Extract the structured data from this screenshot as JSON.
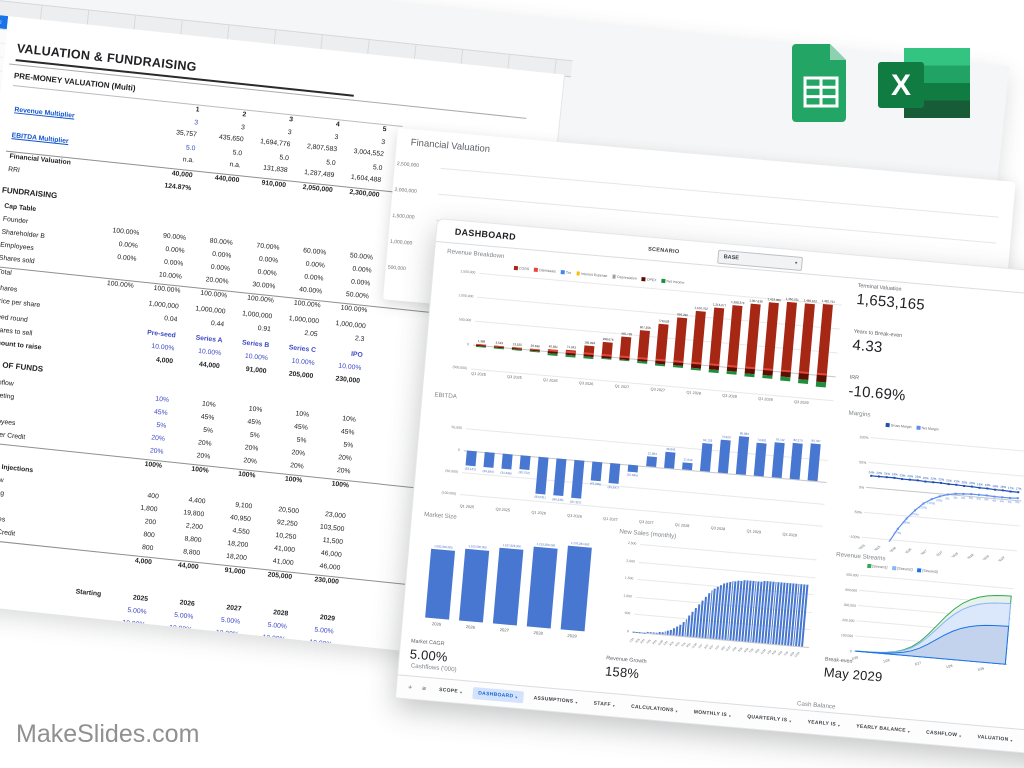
{
  "branding": {
    "watermark": "MakeSlides.com"
  },
  "icons": [
    {
      "name": "google-sheets-icon"
    },
    {
      "name": "excel-icon"
    }
  ],
  "back_sheet": {
    "selected_row": "2",
    "lines": [
      {
        "t": "title",
        "label": "VALUATION & FUNDRAISING"
      },
      {
        "t": "gap",
        "h": 6
      },
      {
        "t": "sec",
        "label": "PRE-MONEY VALUATION (Multi)",
        "rule": true
      },
      {
        "t": "heads",
        "cells": [
          "",
          "1",
          "2",
          "3",
          "4",
          "5"
        ]
      },
      {
        "t": "mrow",
        "label": "Revenue Multiplier",
        "link": true,
        "m": [
          "",
          "3",
          "3",
          "3",
          "3",
          "3"
        ],
        "v": [
          "",
          "35,757",
          "435,650",
          "1,694,776",
          "2,807,583",
          "3,004,552"
        ]
      },
      {
        "t": "mrow",
        "label": "EBITDA Multiplier",
        "link": true,
        "m": [
          "",
          "5.0",
          "5.0",
          "5.0",
          "5.0",
          "5.0"
        ],
        "v": [
          "",
          "n.a.",
          "n.a.",
          "131,838",
          "1,287,489",
          "1,604,488"
        ]
      },
      {
        "t": "row",
        "label": "Financial Valuation",
        "lb": 1,
        "tb": 1,
        "cb": 1,
        "cells": [
          "",
          "40,000",
          "440,000",
          "910,000",
          "2,050,000",
          "2,300,000"
        ]
      },
      {
        "t": "row",
        "label": "RRI",
        "cb": 1,
        "cells": [
          "",
          "124.87%",
          "",
          "",
          "",
          ""
        ]
      },
      {
        "t": "gap",
        "h": 8
      },
      {
        "t": "sec",
        "label": "FUNDRAISING"
      },
      {
        "t": "gap",
        "h": 2
      },
      {
        "t": "row",
        "label": "Cap Table",
        "lb": 1,
        "cells": [
          "",
          "",
          "",
          "",
          "",
          ""
        ]
      },
      {
        "t": "row",
        "label": "Founder",
        "cells": [
          "100.00%",
          "90.00%",
          "80.00%",
          "70.00%",
          "60.00%",
          "50.00%"
        ]
      },
      {
        "t": "row",
        "label": "Shareholder B",
        "cells": [
          "0.00%",
          "0.00%",
          "0.00%",
          "0.00%",
          "0.00%",
          "0.00%"
        ]
      },
      {
        "t": "row",
        "label": "Employees",
        "cells": [
          "0.00%",
          "0.00%",
          "0.00%",
          "0.00%",
          "0.00%",
          "0.00%"
        ]
      },
      {
        "t": "row",
        "label": "Shares sold",
        "cells": [
          "",
          "10.00%",
          "20.00%",
          "30.00%",
          "40.00%",
          "50.00%"
        ]
      },
      {
        "t": "row",
        "label": "Total",
        "tb": 1,
        "cells": [
          "100.00%",
          "100.00%",
          "100.00%",
          "100.00%",
          "100.00%",
          "100.00%"
        ]
      },
      {
        "t": "gap",
        "h": 3
      },
      {
        "t": "row",
        "label": "Shares",
        "cells": [
          "",
          "1,000,000",
          "1,000,000",
          "1,000,000",
          "1,000,000",
          "1,000,000"
        ]
      },
      {
        "t": "row",
        "label": "Price per share",
        "cells": [
          "",
          "0.04",
          "0.44",
          "0.91",
          "2.05",
          "2.3"
        ]
      },
      {
        "t": "gap",
        "h": 3
      },
      {
        "t": "row",
        "label": "Seed round",
        "cu": 1,
        "cb": 1,
        "cells": [
          "",
          "Pre-seed",
          "Series A",
          "Series B",
          "Series C",
          "IPO"
        ]
      },
      {
        "t": "row",
        "label": "Shares to sell",
        "cu": 1,
        "cells": [
          "",
          "10.00%",
          "10.00%",
          "10.00%",
          "10.00%",
          "10.00%"
        ]
      },
      {
        "t": "row",
        "label": "Amount to raise",
        "lb": 1,
        "cb": 1,
        "cells": [
          "",
          "4,000",
          "44,000",
          "91,000",
          "205,000",
          "230,000"
        ]
      },
      {
        "t": "gap",
        "h": 8
      },
      {
        "t": "sec",
        "label": "USE OF FUNDS"
      },
      {
        "t": "gap",
        "h": 4
      },
      {
        "t": "row",
        "label": "Cashflow",
        "c1u": 1,
        "cells": [
          "",
          "10%",
          "10%",
          "10%",
          "10%",
          "10%"
        ]
      },
      {
        "t": "row",
        "label": "Marketing",
        "c1u": 1,
        "cells": [
          "",
          "45%",
          "45%",
          "45%",
          "45%",
          "45%"
        ]
      },
      {
        "t": "row",
        "label": "Legal",
        "c1u": 1,
        "cells": [
          "",
          "5%",
          "5%",
          "5%",
          "5%",
          "5%"
        ]
      },
      {
        "t": "row",
        "label": "Employees",
        "c1u": 1,
        "cells": [
          "",
          "20%",
          "20%",
          "20%",
          "20%",
          "20%"
        ]
      },
      {
        "t": "row",
        "label": "Supplier Credit",
        "c1u": 1,
        "cells": [
          "",
          "20%",
          "20%",
          "20%",
          "20%",
          "20%"
        ]
      },
      {
        "t": "row",
        "label": "Total",
        "lb": 1,
        "tb": 1,
        "cb": 1,
        "cells": [
          "",
          "100%",
          "100%",
          "100%",
          "100%",
          "100%"
        ]
      },
      {
        "t": "gap",
        "h": 5
      },
      {
        "t": "row",
        "label": "Capital Injections",
        "lb": 1,
        "cells": [
          "",
          "",
          "",
          "",
          "",
          ""
        ]
      },
      {
        "t": "row",
        "label": "Cashflow",
        "cells": [
          "",
          "400",
          "4,400",
          "9,100",
          "20,500",
          "23,000"
        ]
      },
      {
        "t": "row",
        "label": "Marketing",
        "cells": [
          "",
          "1,800",
          "19,800",
          "40,950",
          "92,250",
          "103,500"
        ]
      },
      {
        "t": "row",
        "label": "Legal",
        "cells": [
          "",
          "200",
          "2,200",
          "4,550",
          "10,250",
          "11,500"
        ]
      },
      {
        "t": "row",
        "label": "Employees",
        "cells": [
          "",
          "800",
          "8,800",
          "18,200",
          "41,000",
          "46,000"
        ]
      },
      {
        "t": "row",
        "label": "Supplier Credit",
        "cells": [
          "",
          "800",
          "8,800",
          "18,200",
          "41,000",
          "46,000"
        ]
      },
      {
        "t": "row",
        "label": "Total",
        "tb": 1,
        "cb": 1,
        "cells": [
          "",
          "4,000",
          "44,000",
          "91,000",
          "205,000",
          "230,000"
        ]
      },
      {
        "t": "gap",
        "h": 10
      },
      {
        "t": "sec",
        "label": "C"
      },
      {
        "t": "heads",
        "cells": [
          "Starting",
          "2025",
          "2026",
          "2027",
          "2028",
          "2029"
        ]
      },
      {
        "t": "row",
        "label": "e Rate",
        "cu": 1,
        "cells": [
          "",
          "5.00%",
          "5.00%",
          "5.00%",
          "5.00%",
          "5.00%"
        ]
      },
      {
        "t": "row",
        "label": "",
        "cu": 1,
        "cells": [
          "",
          "10.00%",
          "10.00%",
          "10.00%",
          "10.00%",
          "10.00%"
        ]
      }
    ]
  },
  "middle_sheet": {
    "title": "Financial Valuation"
  },
  "dashboard": {
    "title": "DASHBOARD",
    "scenario_label": "SCENARIO",
    "scenario_value": "BASE",
    "kpis": [
      {
        "label": "Terminal Valuation",
        "value": "1,653,165"
      },
      {
        "label": "Years to Break-even",
        "value": "4.33"
      },
      {
        "label": "IRR",
        "value": "-10.69%"
      },
      {
        "label": "Market CAGR",
        "value": "5.00%"
      },
      {
        "label": "Revenue Growth",
        "value": "158%"
      },
      {
        "label": "Break-even",
        "value": "May 2029"
      }
    ],
    "cashflows_title": "Cashflows ('000)",
    "cash_balance_title": "Cash Balance",
    "tabs": {
      "items": [
        "SCOPE",
        "DASHBOARD",
        "ASSUMPTIONS",
        "STAFF",
        "CALCULATIONS",
        "MONTHLY IS",
        "QUARTERLY IS",
        "YEARLY IS",
        "YEARLY BALANCE",
        "CASHFLOW",
        "VALUATION"
      ],
      "active": "DASHBOARD"
    }
  },
  "chart_data": [
    {
      "id": "financial_valuation",
      "type": "bar",
      "title": "Financial Valuation",
      "y_ticks": [
        "2,500,000",
        "2,000,000",
        "1,500,000",
        "1,000,000",
        "500,000"
      ],
      "note": "bars hidden behind front sheet"
    },
    {
      "id": "revenue_breakdown",
      "type": "stacked-bar",
      "title": "Revenue Breakdown",
      "legend": [
        {
          "label": "COGS",
          "color": "#a52714"
        },
        {
          "label": "Dismissals",
          "color": "#e8453c"
        },
        {
          "label": "Tax",
          "color": "#4285f4"
        },
        {
          "label": "Interest Expense",
          "color": "#fbbc04"
        },
        {
          "label": "Depreciation",
          "color": "#9aa0a6"
        },
        {
          "label": "OPEX",
          "color": "#5b0f00"
        },
        {
          "label": "Net Income",
          "color": "#1e8e3e"
        }
      ],
      "categories": [
        "Q1 2025",
        "Q2 2025",
        "Q3 2025",
        "Q4 2025",
        "Q1 2026",
        "Q2 2026",
        "Q3 2026",
        "Q4 2026",
        "Q1 2027",
        "Q2 2027",
        "Q3 2027",
        "Q4 2027",
        "Q1 2028",
        "Q2 2028",
        "Q3 2028",
        "Q4 2028",
        "Q1 2029",
        "Q2 2029",
        "Q3 2029",
        "Q4 2029"
      ],
      "bar_labels": [
        "1,389",
        "3,549",
        "13,525",
        "29,636",
        "40,561",
        "71,343",
        "185,894",
        "298,676",
        "445,738",
        "607,356",
        "779,529",
        "936,290",
        "1,100,752",
        "1,215,077",
        "1,288,373",
        "1,357,630",
        "1,423,366",
        "1,450,011",
        "1,466,102",
        "1,482,751"
      ],
      "revenue": [
        1389,
        3549,
        13525,
        29636,
        40561,
        71343,
        185894,
        298676,
        445738,
        607356,
        779529,
        936290,
        1100752,
        1215077,
        1288373,
        1357630,
        1423366,
        1450011,
        1466102,
        1482751
      ],
      "below_axis": [
        -30000,
        -33000,
        -36000,
        -40000,
        -75000,
        -80000,
        -85000,
        -60000,
        -70000,
        -82000,
        -95000,
        -110000,
        -130000,
        -145000,
        -155000,
        -165000,
        -175000,
        -188000,
        -200000,
        -245000
      ],
      "y_ticks": [
        "1,500,000",
        "1,000,000",
        "500,000",
        "0",
        "(500,000)"
      ],
      "ylim": [
        -500000,
        1500000
      ]
    },
    {
      "id": "ebitda",
      "type": "bar",
      "title": "EBITDA",
      "color": "#4777d0",
      "categories": [
        "Q1 2025",
        "Q2 2025",
        "Q3 2025",
        "Q4 2025",
        "Q1 2026",
        "Q2 2026",
        "Q3 2026",
        "Q4 2026",
        "Q1 2027",
        "Q2 2027",
        "Q3 2027",
        "Q4 2027",
        "Q1 2028",
        "Q2 2028",
        "Q3 2028",
        "Q4 2028",
        "Q1 2029",
        "Q2 2029",
        "Q3 2029",
        "Q4 2029"
      ],
      "values": [
        -33141,
        -34594,
        -34486,
        -30752,
        -84031,
        -84335,
        -87327,
        -43096,
        -45647,
        -15645,
        21894,
        36843,
        17044,
        64133,
        74620,
        85882,
        74681,
        78742,
        82270,
        84787
      ],
      "labels": [
        "(33,141)",
        "(34,594)",
        "(34,486)",
        "(30,752)",
        "(84,031)",
        "(84,335)",
        "(87,327)",
        "(43,096)",
        "(45,647)",
        "(15,645)",
        "21,894",
        "36,843",
        "17,044",
        "64,133",
        "74,620",
        "85,882",
        "74,681",
        "78,742",
        "82,270",
        "84,787"
      ],
      "y_ticks": [
        "50,000",
        "0",
        "(50,000)",
        "(100,000)"
      ],
      "ylim": [
        -100000,
        100000
      ]
    },
    {
      "id": "margins",
      "type": "line",
      "title": "Margins",
      "series": [
        {
          "name": "Gross Margin",
          "color": "#1f4fb3",
          "values": [
            24,
            24,
            24,
            24,
            23,
            23,
            23,
            22,
            22,
            22,
            21,
            21,
            20,
            20,
            19,
            19,
            18,
            18,
            17,
            17
          ]
        },
        {
          "name": "Net Margin",
          "color": "#5f8ef0",
          "values": [
            -230,
            -180,
            -140,
            -105,
            -77,
            -55,
            -37,
            -22,
            -12,
            -5,
            0,
            3,
            4,
            5,
            5,
            5,
            4,
            4,
            4,
            5
          ]
        }
      ],
      "categories": [
        "Q1 2025",
        "Q2 2025",
        "Q3 2025",
        "Q4 2025",
        "Q1 2026",
        "Q2 2026",
        "Q3 2026",
        "Q4 2026",
        "Q1 2027",
        "Q2 2027",
        "Q3 2027",
        "Q4 2027",
        "Q1 2028",
        "Q2 2028",
        "Q3 2028",
        "Q4 2028",
        "Q1 2029",
        "Q2 2029",
        "Q3 2029",
        "Q4 2029"
      ],
      "y_ticks": [
        "100%",
        "50%",
        "0%",
        "-50%",
        "-100%"
      ],
      "ylim": [
        -100,
        100
      ]
    },
    {
      "id": "market_size",
      "type": "bar",
      "title": "Market Size",
      "color": "#4777d0",
      "categories": [
        "2025",
        "2026",
        "2027",
        "2028",
        "2029"
      ],
      "values": [
        1050000000,
        1102500000,
        1157625000,
        1215506250,
        1276281563
      ],
      "labels": [
        "1,050,000,000",
        "1,102,500,000",
        "1,157,625,000",
        "1,215,506,250",
        "1,276,281,563"
      ]
    },
    {
      "id": "new_sales",
      "type": "bar",
      "title": "New Sales (monthly)",
      "color": "#4777d0",
      "x_range": "1/25 - 12/29",
      "y_ticks": [
        "2,500",
        "2,000",
        "1,500",
        "1,000",
        "500",
        "0"
      ],
      "ylim": [
        0,
        2500
      ],
      "values": [
        3,
        4,
        6,
        8,
        11,
        15,
        21,
        28,
        38,
        51,
        68,
        90,
        118,
        154,
        199,
        255,
        323,
        404,
        497,
        601,
        713,
        830,
        948,
        1063,
        1171,
        1269,
        1355,
        1429,
        1491,
        1542,
        1584,
        1618,
        1645,
        1667,
        1685,
        1699,
        1710,
        1719,
        1726,
        1732,
        1737,
        1741,
        1744,
        1747,
        1749,
        1751,
        1753,
        1754,
        1755,
        1756,
        1757,
        1758,
        1758,
        1759,
        1759,
        1760,
        1760,
        1760,
        1761,
        1761
      ]
    },
    {
      "id": "revenue_streams",
      "type": "area",
      "title": "Revenue Streams",
      "legend": [
        {
          "label": "[Stream1]",
          "color": "#34a853"
        },
        {
          "label": "[Stream2]",
          "color": "#8ab4f8"
        },
        {
          "label": "[Stream3]",
          "color": "#1a73e8"
        }
      ],
      "x_labels": [
        "1/25",
        "1/26",
        "1/27",
        "1/28",
        "1/29"
      ],
      "y_ticks": [
        "500,000",
        "400,000",
        "300,000",
        "200,000",
        "100,000",
        "0"
      ],
      "ylim": [
        0,
        500000
      ],
      "series_cumulative": {
        "stream1_top": [
          900,
          1500,
          2700,
          5400,
          10800,
          19800,
          36000,
          61200,
          100800,
          154800,
          217800,
          280800,
          334800,
          376200,
          405000,
          424800,
          437400,
          444600,
          448200,
          450000
        ],
        "stream2_mid": [
          800,
          1300,
          2400,
          4800,
          9600,
          17600,
          32000,
          54400,
          89600,
          137600,
          193600,
          249600,
          297600,
          334400,
          360000,
          377600,
          388800,
          395200,
          398400,
          400000
        ],
        "stream3_low": [
          500,
          800,
          1500,
          3000,
          6000,
          11000,
          20000,
          34000,
          56000,
          86000,
          121000,
          156000,
          186000,
          209000,
          225000,
          236000,
          243000,
          247000,
          249000,
          250000
        ]
      }
    },
    {
      "id": "cashflows",
      "type": "bar",
      "title": "Cashflows ('000)",
      "note": "cut off at sheet edge"
    },
    {
      "id": "cash_balance",
      "type": "line",
      "title": "Cash Balance",
      "note": "cut off at sheet edge"
    }
  ]
}
